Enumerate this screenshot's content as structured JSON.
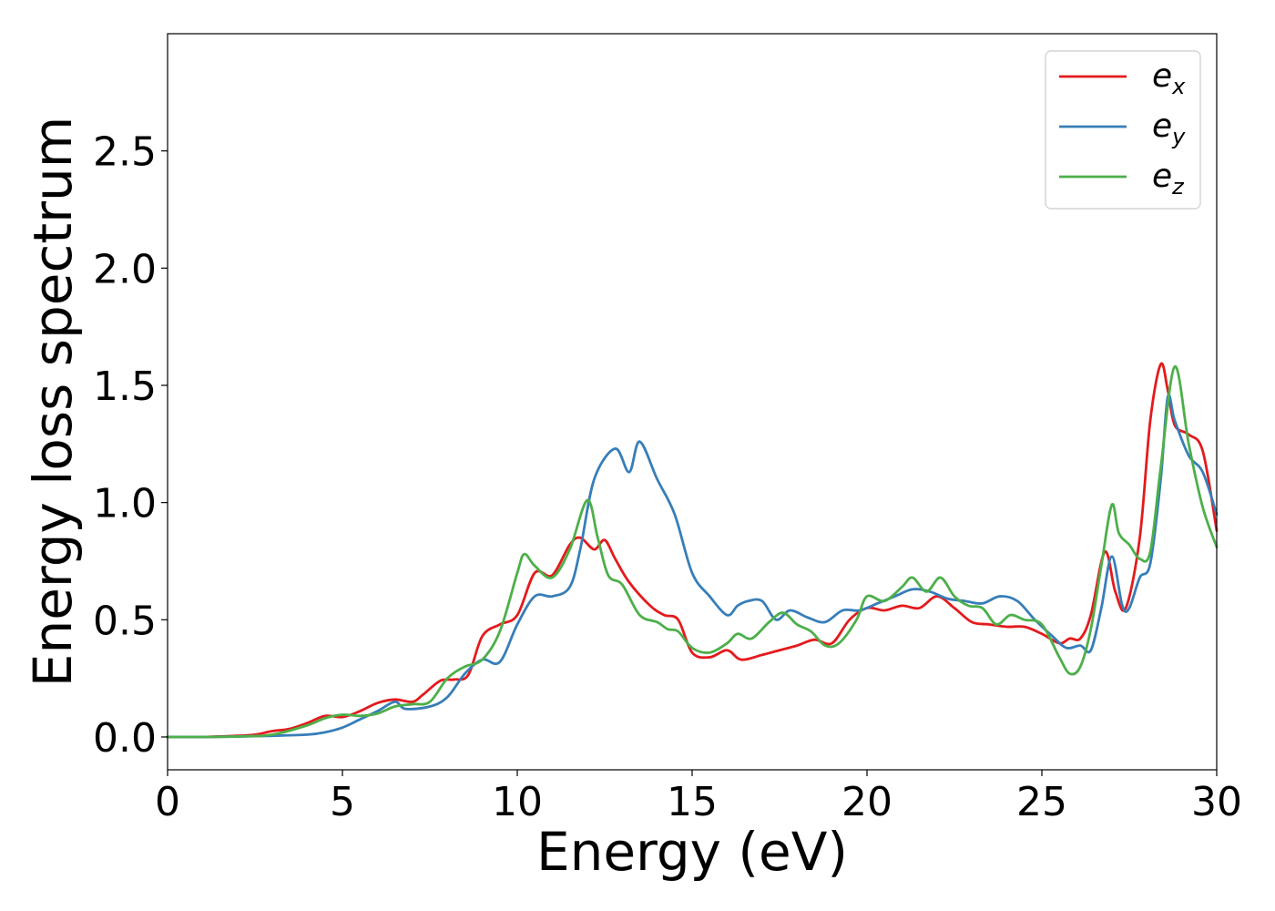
{
  "chart_data": {
    "type": "line",
    "title": "",
    "xlabel": "Energy (eV)",
    "ylabel": "Energy loss spectrum",
    "xlim": [
      0,
      30
    ],
    "ylim": [
      -0.14,
      3.0
    ],
    "xticks": [
      0,
      5,
      10,
      15,
      20,
      25,
      30
    ],
    "xtick_labels": [
      "0",
      "5",
      "10",
      "15",
      "20",
      "25",
      "30"
    ],
    "yticks": [
      0.0,
      0.5,
      1.0,
      1.5,
      2.0,
      2.5
    ],
    "ytick_labels": [
      "0.0",
      "0.5",
      "1.0",
      "1.5",
      "2.0",
      "2.5"
    ],
    "grid": false,
    "legend_position": "top-right",
    "series": [
      {
        "name": "e",
        "name_subscript": "x",
        "color": "#e41a1c",
        "x": [
          0,
          1,
          2,
          2.5,
          3,
          3.5,
          4,
          4.5,
          5,
          5.5,
          6,
          6.5,
          7,
          7.3,
          7.8,
          8.2,
          8.6,
          9,
          9.5,
          10,
          10.5,
          11,
          11.5,
          11.8,
          12.2,
          12.5,
          12.8,
          13.2,
          13.8,
          14.2,
          14.6,
          15,
          15.5,
          16,
          16.4,
          17,
          17.5,
          18,
          18.5,
          19,
          19.5,
          20,
          20.5,
          21,
          21.5,
          22,
          22.5,
          23,
          23.5,
          24,
          24.5,
          25,
          25.5,
          25.8,
          26.1,
          26.4,
          26.8,
          27.1,
          27.4,
          27.8,
          28.1,
          28.4,
          28.6,
          28.8,
          29.2,
          29.6,
          30
        ],
        "y": [
          0.0,
          0.0,
          0.005,
          0.01,
          0.025,
          0.035,
          0.06,
          0.09,
          0.085,
          0.11,
          0.145,
          0.16,
          0.15,
          0.18,
          0.24,
          0.245,
          0.265,
          0.43,
          0.48,
          0.52,
          0.7,
          0.69,
          0.82,
          0.85,
          0.8,
          0.84,
          0.76,
          0.66,
          0.56,
          0.52,
          0.5,
          0.36,
          0.34,
          0.37,
          0.33,
          0.35,
          0.37,
          0.39,
          0.415,
          0.4,
          0.5,
          0.55,
          0.54,
          0.56,
          0.55,
          0.6,
          0.55,
          0.49,
          0.48,
          0.47,
          0.47,
          0.44,
          0.4,
          0.42,
          0.42,
          0.52,
          0.79,
          0.62,
          0.55,
          0.85,
          1.35,
          1.59,
          1.48,
          1.33,
          1.29,
          1.22,
          0.88
        ]
      },
      {
        "name": "e",
        "name_subscript": "y",
        "color": "#377eb8",
        "x": [
          0,
          1,
          2,
          3,
          4,
          4.5,
          5,
          5.5,
          6,
          6.5,
          6.8,
          7.5,
          8,
          8.5,
          9,
          9.5,
          10,
          10.5,
          11,
          11.5,
          11.8,
          12.2,
          12.8,
          13.2,
          13.5,
          14,
          14.5,
          15,
          15.5,
          16,
          16.3,
          16.6,
          17,
          17.4,
          17.8,
          18.3,
          18.8,
          19.3,
          19.8,
          20.3,
          20.8,
          21.3,
          21.8,
          22.3,
          22.8,
          23.3,
          23.8,
          24.3,
          24.8,
          25.3,
          25.7,
          26.1,
          26.4,
          26.7,
          27.0,
          27.3,
          27.5,
          27.8,
          28.1,
          28.4,
          28.6,
          28.8,
          29.2,
          29.6,
          30
        ],
        "y": [
          0.0,
          0.0,
          0.002,
          0.005,
          0.01,
          0.02,
          0.04,
          0.075,
          0.11,
          0.15,
          0.12,
          0.13,
          0.17,
          0.27,
          0.33,
          0.32,
          0.48,
          0.6,
          0.6,
          0.64,
          0.8,
          1.1,
          1.23,
          1.13,
          1.26,
          1.1,
          0.95,
          0.7,
          0.6,
          0.52,
          0.56,
          0.58,
          0.58,
          0.5,
          0.54,
          0.51,
          0.49,
          0.54,
          0.54,
          0.57,
          0.6,
          0.63,
          0.62,
          0.59,
          0.58,
          0.57,
          0.6,
          0.58,
          0.5,
          0.43,
          0.38,
          0.39,
          0.37,
          0.55,
          0.77,
          0.56,
          0.55,
          0.68,
          0.74,
          1.1,
          1.45,
          1.35,
          1.2,
          1.13,
          0.95
        ]
      },
      {
        "name": "e",
        "name_subscript": "z",
        "color": "#4daf4a",
        "x": [
          0,
          1,
          2,
          3,
          4,
          4.5,
          5,
          5.5,
          6,
          6.5,
          7,
          7.5,
          8,
          8.5,
          9,
          9.5,
          10,
          10.2,
          10.5,
          11,
          11.5,
          12,
          12.3,
          12.6,
          13,
          13.5,
          14,
          14.3,
          14.6,
          15,
          15.5,
          16,
          16.3,
          16.7,
          17.2,
          17.6,
          18,
          18.4,
          18.8,
          19.2,
          19.7,
          20,
          20.5,
          21,
          21.3,
          21.7,
          22.1,
          22.5,
          22.9,
          23.3,
          23.7,
          24.1,
          24.5,
          25,
          25.5,
          25.8,
          26.1,
          26.4,
          26.7,
          27.0,
          27.2,
          27.5,
          27.8,
          28.1,
          28.4,
          28.8,
          29.2,
          29.6,
          30
        ],
        "y": [
          0.0,
          0.0,
          0.002,
          0.01,
          0.05,
          0.08,
          0.095,
          0.09,
          0.1,
          0.13,
          0.14,
          0.15,
          0.25,
          0.3,
          0.33,
          0.45,
          0.7,
          0.78,
          0.73,
          0.68,
          0.8,
          1.01,
          0.85,
          0.69,
          0.65,
          0.52,
          0.49,
          0.46,
          0.45,
          0.38,
          0.36,
          0.4,
          0.44,
          0.42,
          0.49,
          0.53,
          0.48,
          0.45,
          0.39,
          0.4,
          0.5,
          0.6,
          0.58,
          0.64,
          0.68,
          0.62,
          0.68,
          0.6,
          0.56,
          0.55,
          0.48,
          0.52,
          0.5,
          0.48,
          0.34,
          0.27,
          0.3,
          0.46,
          0.73,
          0.99,
          0.87,
          0.82,
          0.76,
          0.79,
          1.15,
          1.58,
          1.25,
          0.98,
          0.81
        ]
      }
    ]
  }
}
